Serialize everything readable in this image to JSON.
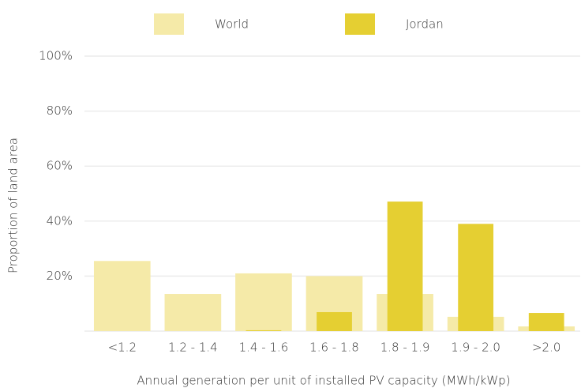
{
  "chart_data": {
    "type": "bar",
    "x_label": "Annual generation per unit of installed PV capacity (MWh/kWp)",
    "y_label": "Proportion of land area",
    "categories": [
      "<1.2",
      "1.2 - 1.4",
      "1.4 - 1.6",
      "1.6 - 1.8",
      "1.8 - 1.9",
      "1.9 - 2.0",
      ">2.0"
    ],
    "series": [
      {
        "name": "World",
        "color": "#f5eaa8",
        "values": [
          25.5,
          13.5,
          21,
          20,
          13.5,
          5.2,
          1.7
        ]
      },
      {
        "name": "Jordan",
        "color": "#e5cf32",
        "values": [
          0,
          0,
          0.3,
          6.9,
          47.1,
          39,
          6.6
        ]
      }
    ],
    "ylim": [
      0,
      100
    ],
    "yticks": [
      {
        "value": 20,
        "label": "20%"
      },
      {
        "value": 40,
        "label": "40%"
      },
      {
        "value": 60,
        "label": "60%"
      },
      {
        "value": 80,
        "label": "80%"
      },
      {
        "value": 100,
        "label": "100%"
      }
    ],
    "grid": true,
    "legend": "top"
  }
}
